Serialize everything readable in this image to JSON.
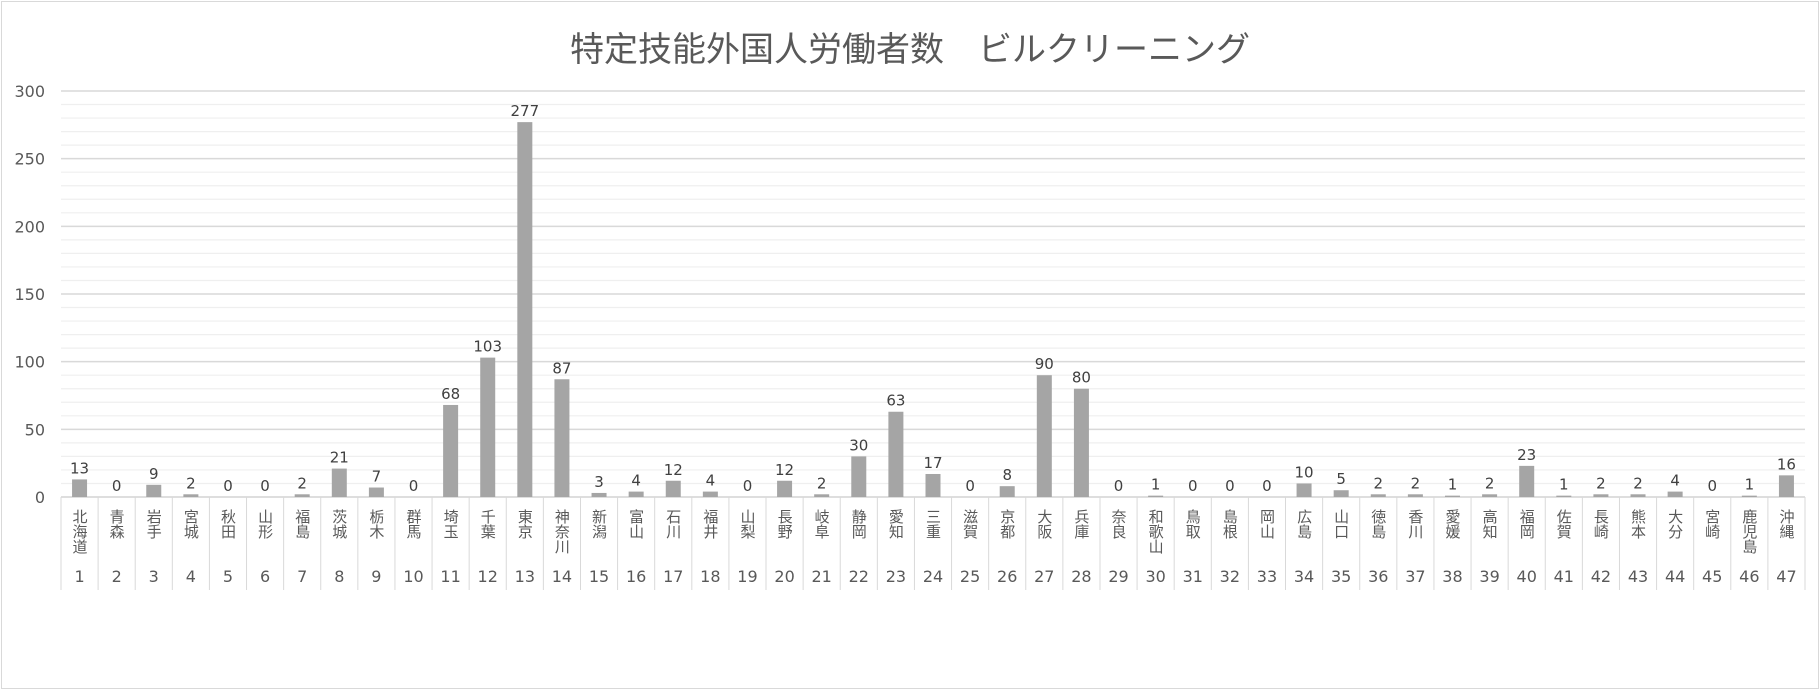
{
  "chart_data": {
    "type": "bar",
    "title": "特定技能外国人労働者数　ビルクリーニング",
    "ylim": [
      0,
      300
    ],
    "yticks": [
      0,
      50,
      100,
      150,
      200,
      250,
      300
    ],
    "grid": {
      "major": 50,
      "minor": 10
    },
    "bar_color": "#a5a5a5",
    "categories": [
      "北海道",
      "青森",
      "岩手",
      "宮城",
      "秋田",
      "山形",
      "福島",
      "茨城",
      "栃木",
      "群馬",
      "埼玉",
      "千葉",
      "東京",
      "神奈川",
      "新潟",
      "富山",
      "石川",
      "福井",
      "山梨",
      "長野",
      "岐阜",
      "静岡",
      "愛知",
      "三重",
      "滋賀",
      "京都",
      "大阪",
      "兵庫",
      "奈良",
      "和歌山",
      "鳥取",
      "島根",
      "岡山",
      "広島",
      "山口",
      "徳島",
      "香川",
      "愛媛",
      "高知",
      "福岡",
      "佐賀",
      "長崎",
      "熊本",
      "大分",
      "宮崎",
      "鹿児島",
      "沖縄"
    ],
    "numbers": [
      "1",
      "2",
      "3",
      "4",
      "5",
      "6",
      "7",
      "8",
      "9",
      "10",
      "11",
      "12",
      "13",
      "14",
      "15",
      "16",
      "17",
      "18",
      "19",
      "20",
      "21",
      "22",
      "23",
      "24",
      "25",
      "26",
      "27",
      "28",
      "29",
      "30",
      "31",
      "32",
      "33",
      "34",
      "35",
      "36",
      "37",
      "38",
      "39",
      "40",
      "41",
      "42",
      "43",
      "44",
      "45",
      "46",
      "47"
    ],
    "values": [
      13,
      0,
      9,
      2,
      0,
      0,
      2,
      21,
      7,
      0,
      68,
      103,
      277,
      87,
      3,
      4,
      12,
      4,
      0,
      12,
      2,
      30,
      63,
      17,
      0,
      8,
      90,
      80,
      0,
      1,
      0,
      0,
      0,
      10,
      5,
      2,
      2,
      1,
      2,
      23,
      1,
      2,
      2,
      4,
      0,
      1,
      16
    ]
  }
}
